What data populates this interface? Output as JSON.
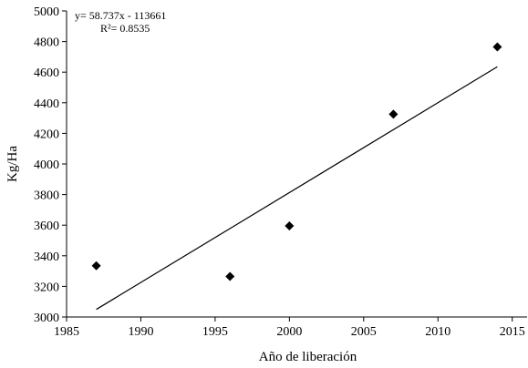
{
  "chart_data": {
    "type": "scatter",
    "xlabel": "Año de liberación",
    "ylabel": "Kg/Ha",
    "xlim": [
      1985,
      2016
    ],
    "ylim": [
      3000,
      5000
    ],
    "xticks": [
      1985,
      1990,
      1995,
      2000,
      2005,
      2010,
      2015
    ],
    "yticks": [
      3000,
      3200,
      3400,
      3600,
      3800,
      4000,
      4200,
      4400,
      4600,
      4800,
      5000
    ],
    "grid": false,
    "marker": "diamond",
    "points": [
      {
        "x": 1987,
        "y": 3335
      },
      {
        "x": 1996,
        "y": 3265
      },
      {
        "x": 2000,
        "y": 3595
      },
      {
        "x": 2007,
        "y": 4325
      },
      {
        "x": 2014,
        "y": 4765
      }
    ],
    "trendline": {
      "type": "linear",
      "slope": 58.737,
      "intercept": -113661,
      "x_range": [
        1987,
        2014
      ]
    },
    "annotations": {
      "equation": "y= 58.737x - 113661",
      "r_squared": "R²= 0.8535"
    }
  }
}
